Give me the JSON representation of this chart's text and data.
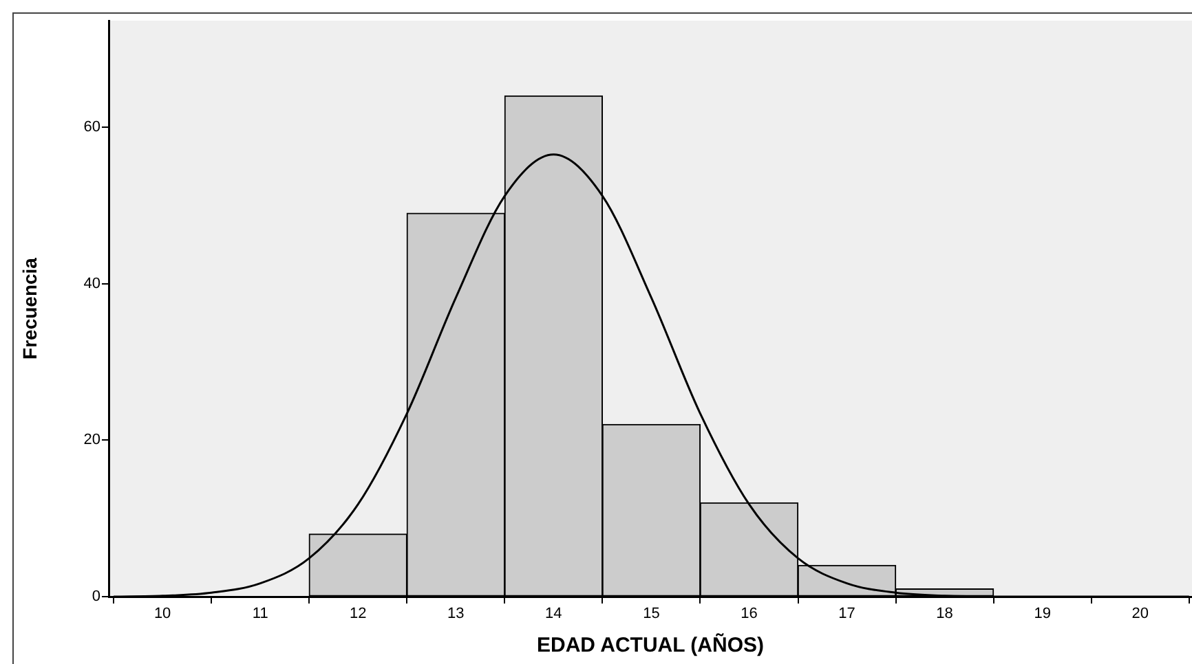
{
  "chart_data": {
    "type": "histogram",
    "xlabel": "EDAD ACTUAL (AÑOS)",
    "ylabel": "Frecuencia",
    "bins": [
      11.5,
      12.5,
      13.5,
      14.5,
      15.5,
      16.5,
      17.5,
      18.5
    ],
    "values": [
      8,
      49,
      64,
      22,
      12,
      4,
      1
    ],
    "color": "#cccccc",
    "series": [
      {
        "type": "line",
        "color": "#000000",
        "x": [
          9.5,
          10,
          10.5,
          11,
          11.5,
          12,
          12.5,
          13,
          13.5,
          14,
          14.5,
          15,
          15.5,
          16,
          16.5,
          17,
          17.5,
          18,
          18.5,
          19,
          19.5,
          20,
          20.5
        ],
        "values": [
          0,
          0.1,
          0.5,
          1.7,
          4.9,
          11.8,
          23.4,
          38.2,
          51.2,
          56.5,
          51.2,
          38.2,
          23.4,
          11.8,
          4.9,
          1.7,
          0.5,
          0.1,
          0,
          0,
          0,
          0,
          0
        ]
      }
    ],
    "xlim": [
      9.45,
      20.53
    ],
    "ylim": [
      0,
      73.6
    ],
    "xticks": [
      10,
      11,
      12,
      13,
      14,
      15,
      16,
      17,
      18,
      19,
      20
    ],
    "yticks": [
      0,
      20,
      40,
      60
    ],
    "grid": false,
    "legend": false,
    "marker": "none",
    "line_style": "solid"
  }
}
